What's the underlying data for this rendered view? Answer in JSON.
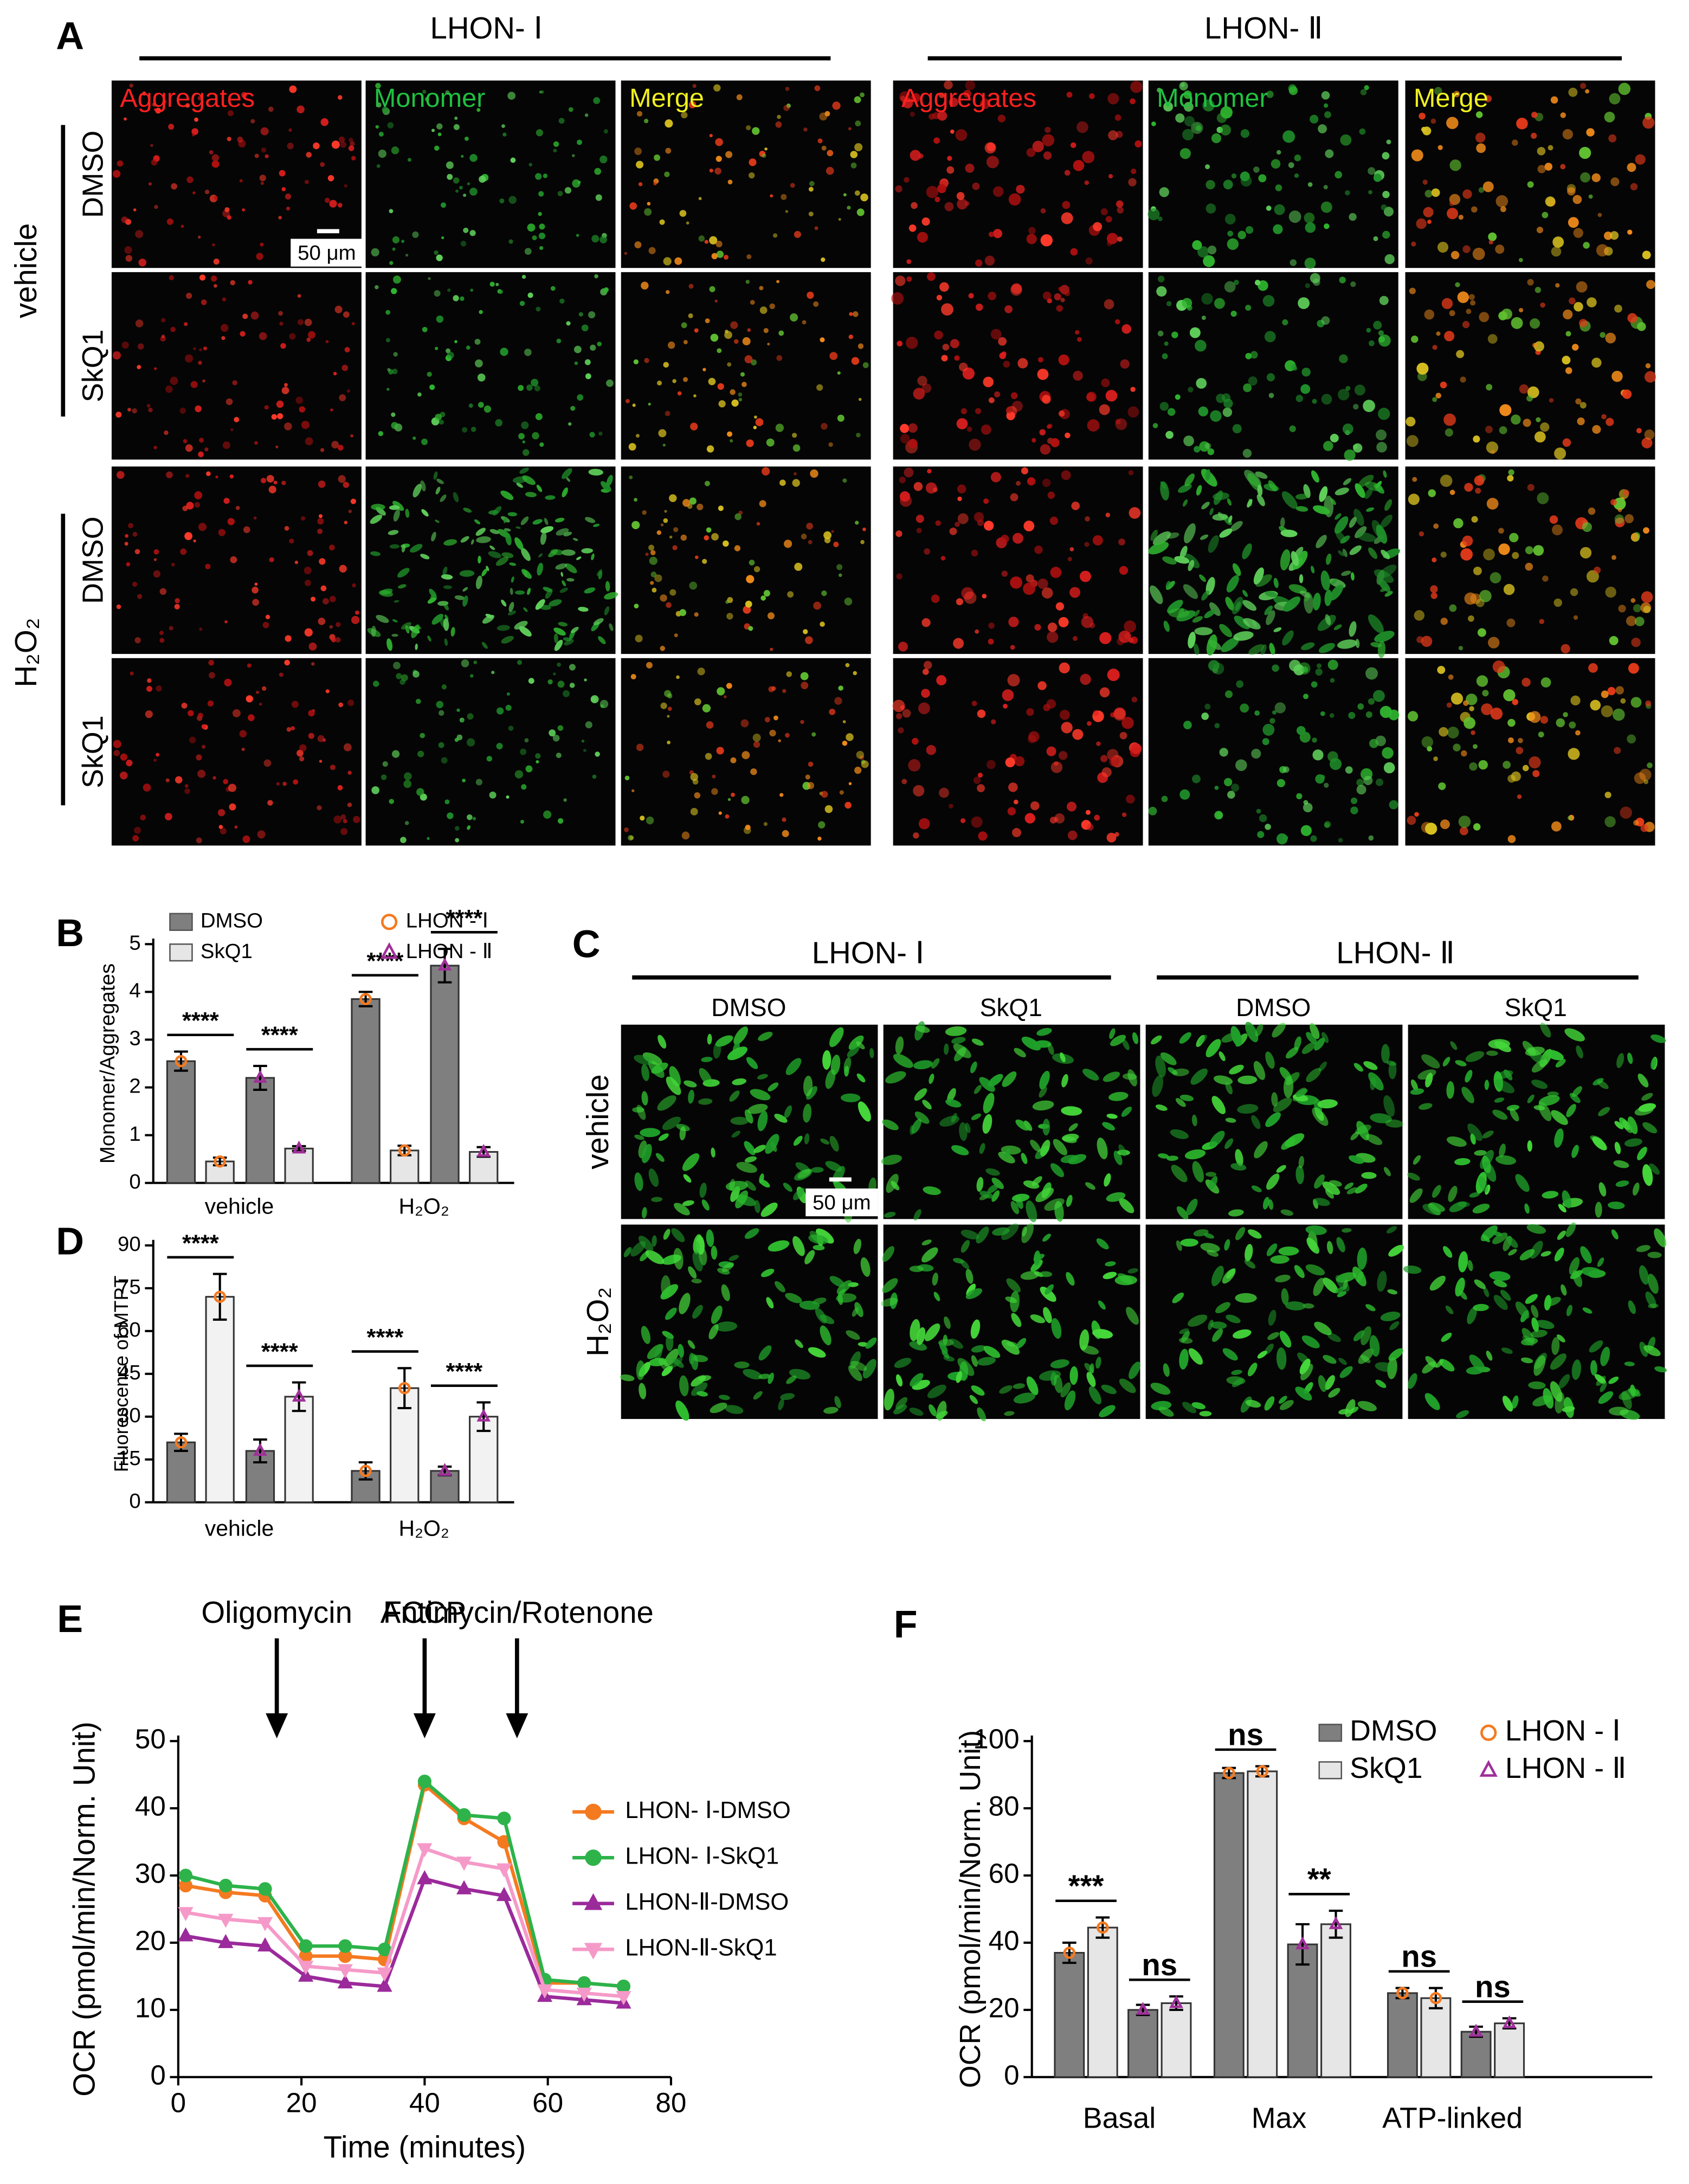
{
  "panel_a": {
    "label": "A",
    "groups": [
      "LHON- Ⅰ",
      "LHON- Ⅱ"
    ],
    "columns": [
      [
        "Aggregates",
        "Monomer",
        "Merge"
      ],
      [
        "Aggregates",
        "Monomer",
        "Merge"
      ]
    ],
    "rows": [
      "DMSO",
      "SkQ1",
      "DMSO",
      "SkQ1"
    ],
    "conditions": [
      "vehicle",
      "H₂O₂"
    ],
    "scale_bar": "50 μm"
  },
  "panel_c": {
    "label": "C",
    "groups": [
      "LHON- Ⅰ",
      "LHON- Ⅱ"
    ],
    "columns": [
      "DMSO",
      "SkQ1",
      "DMSO",
      "SkQ1"
    ],
    "conditions": [
      "vehicle",
      "H₂O₂"
    ],
    "scale_bar": "50 μm"
  },
  "chart_data": [
    {
      "type": "bar",
      "panel_label": "B",
      "y_label": "Monomer/Aggregates",
      "categories": [
        "vehicle",
        "H₂O₂"
      ],
      "ylim": [
        0,
        5
      ],
      "yticks": [
        0,
        1,
        2,
        3,
        4,
        5
      ],
      "legend": [
        {
          "name": "DMSO",
          "color": "#7f7f7f"
        },
        {
          "name": "SkQ1",
          "color": "#e6e6e6"
        }
      ],
      "markers": [
        {
          "name": "LHON - Ⅰ",
          "color": "#f47a20",
          "shape": "circle"
        },
        {
          "name": "LHON - Ⅱ",
          "color": "#a0309a",
          "shape": "triangle"
        }
      ],
      "series": [
        {
          "color": "#7f7f7f",
          "marker": "circle",
          "marker_color": "#f47a20",
          "values": [
            2.55,
            3.85
          ],
          "errors": [
            0.2,
            0.15
          ]
        },
        {
          "color": "#e6e6e6",
          "marker": "circle",
          "marker_color": "#f47a20",
          "values": [
            0.45,
            0.68
          ],
          "errors": [
            0.08,
            0.1
          ]
        },
        {
          "color": "#7f7f7f",
          "marker": "triangle",
          "marker_color": "#a0309a",
          "values": [
            2.2,
            4.55
          ],
          "errors": [
            0.25,
            0.35
          ]
        },
        {
          "color": "#e6e6e6",
          "marker": "triangle",
          "marker_color": "#a0309a",
          "values": [
            0.72,
            0.65
          ],
          "errors": [
            0.05,
            0.1
          ]
        }
      ],
      "significance": [
        [
          "****",
          "****"
        ],
        [
          "****",
          "****"
        ]
      ]
    },
    {
      "type": "bar",
      "panel_label": "D",
      "y_label": "Fluorescence of MTPT",
      "categories": [
        "vehicle",
        "H₂O₂"
      ],
      "ylim": [
        0,
        90
      ],
      "yticks": [
        0,
        15,
        30,
        45,
        60,
        75,
        90
      ],
      "series": [
        {
          "color": "#7f7f7f",
          "marker": "circle",
          "marker_color": "#f47a20",
          "values": [
            21,
            11
          ],
          "errors": [
            3,
            3
          ]
        },
        {
          "color": "#f2f2f2",
          "marker": "circle",
          "marker_color": "#f47a20",
          "values": [
            72,
            40
          ],
          "errors": [
            8,
            7
          ]
        },
        {
          "color": "#7f7f7f",
          "marker": "triangle",
          "marker_color": "#a0309a",
          "values": [
            18,
            11
          ],
          "errors": [
            4,
            1.5
          ]
        },
        {
          "color": "#f2f2f2",
          "marker": "triangle",
          "marker_color": "#a0309a",
          "values": [
            37,
            30
          ],
          "errors": [
            5,
            5
          ]
        }
      ],
      "significance": [
        [
          "****",
          "****"
        ],
        [
          "****",
          "****"
        ]
      ]
    },
    {
      "type": "line",
      "panel_label": "E",
      "x_label": "Time (minutes)",
      "y_label": "OCR (pmol/min/Norm. Unit)",
      "xlim": [
        0,
        80
      ],
      "xticks": [
        0,
        20,
        40,
        60,
        80
      ],
      "ylim": [
        0,
        50
      ],
      "yticks": [
        0,
        10,
        20,
        30,
        40,
        50
      ],
      "injections": [
        {
          "label": "Oligomycin",
          "x": 16
        },
        {
          "label": "FCCP",
          "x": 40
        },
        {
          "label": "Antimycin/Rotenone",
          "x": 55
        }
      ],
      "x": [
        1.2,
        7.7,
        14.1,
        20.7,
        27.1,
        33.5,
        40,
        46.4,
        52.9,
        59.5,
        65.9,
        72.3
      ],
      "series": [
        {
          "name": "LHON- Ⅰ-DMSO",
          "color": "#f47a20",
          "marker": "circle",
          "values": [
            28.5,
            27.5,
            27,
            18,
            18,
            17.5,
            43.5,
            38.5,
            35,
            14,
            14,
            13.5
          ]
        },
        {
          "name": "LHON- Ⅰ-SkQ1",
          "color": "#2db34a",
          "marker": "circle",
          "values": [
            30,
            28.5,
            28,
            19.5,
            19.5,
            19,
            44,
            39,
            38.5,
            14.5,
            14,
            13.5
          ]
        },
        {
          "name": "LHON-Ⅱ-DMSO",
          "color": "#9b2a9b",
          "marker": "triangle",
          "values": [
            21,
            20,
            19.5,
            15,
            14,
            13.5,
            29.5,
            28,
            27,
            12,
            11.5,
            11
          ]
        },
        {
          "name": "LHON-Ⅱ-SkQ1",
          "color": "#f59ac8",
          "marker": "triangle-down",
          "values": [
            24.5,
            23.5,
            23,
            16.5,
            16,
            15.5,
            34,
            32,
            31,
            13,
            12.5,
            12
          ]
        }
      ]
    },
    {
      "type": "bar",
      "panel_label": "F",
      "y_label": "OCR (pmol/min/Norm. Unit)",
      "categories": [
        "Basal",
        "Max",
        "ATP-linked"
      ],
      "ylim": [
        0,
        100
      ],
      "yticks": [
        0,
        20,
        40,
        60,
        80,
        100
      ],
      "legend": [
        {
          "name": "DMSO",
          "color": "#7f7f7f"
        },
        {
          "name": "SkQ1",
          "color": "#e6e6e6"
        }
      ],
      "markers": [
        {
          "name": "LHON - Ⅰ",
          "color": "#f47a20",
          "shape": "circle"
        },
        {
          "name": "LHON - Ⅱ",
          "color": "#a0309a",
          "shape": "triangle"
        }
      ],
      "series": [
        {
          "color": "#7f7f7f",
          "marker": "circle",
          "marker_color": "#f47a20",
          "values": [
            37,
            90.5,
            25
          ],
          "errors": [
            3,
            1.5,
            1.5
          ]
        },
        {
          "color": "#e6e6e6",
          "marker": "circle",
          "marker_color": "#f47a20",
          "values": [
            44.5,
            91,
            23.5
          ],
          "errors": [
            3,
            1.5,
            3
          ]
        },
        {
          "color": "#7f7f7f",
          "marker": "triangle",
          "marker_color": "#a0309a",
          "values": [
            20,
            39.5,
            13.5
          ],
          "errors": [
            1.5,
            6,
            1.5
          ]
        },
        {
          "color": "#e6e6e6",
          "marker": "triangle",
          "marker_color": "#a0309a",
          "values": [
            22,
            45.5,
            16
          ],
          "errors": [
            2,
            4,
            1.5
          ]
        }
      ],
      "significance": [
        [
          "***",
          "ns"
        ],
        [
          "ns",
          "**"
        ],
        [
          "ns",
          "ns"
        ]
      ]
    }
  ]
}
